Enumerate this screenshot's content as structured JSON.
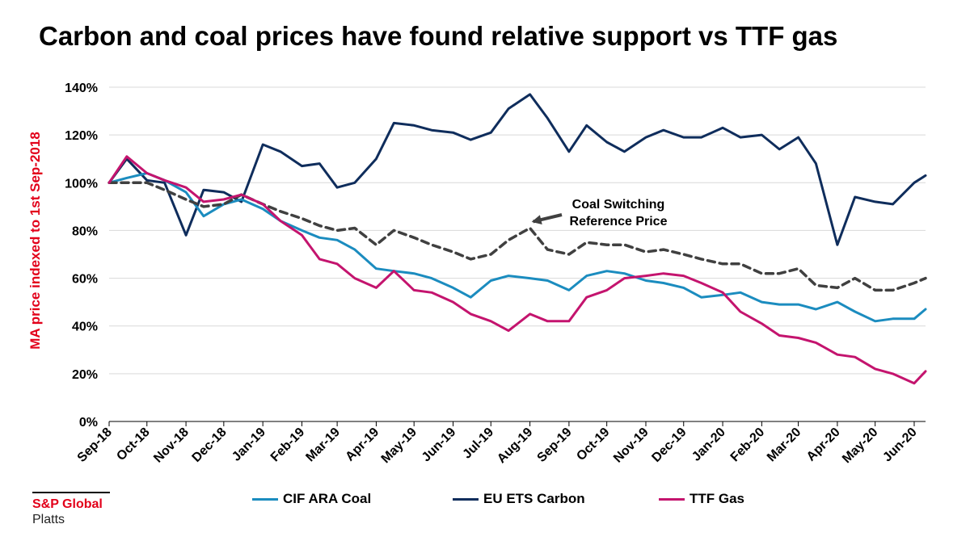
{
  "chart_data": {
    "type": "line",
    "title": "Carbon and coal prices have found relative support vs TTF gas",
    "ylabel": "MA price indexed to 1st Sep-2018",
    "xlabel": "",
    "ylim": [
      0,
      140
    ],
    "yticks": [
      "0%",
      "20%",
      "40%",
      "60%",
      "80%",
      "100%",
      "120%",
      "140%"
    ],
    "x_tick_labels": [
      "Sep-18",
      "Oct-18",
      "Nov-18",
      "Dec-18",
      "Jan-19",
      "Feb-19",
      "Mar-19",
      "Apr-19",
      "May-19",
      "Jun-19",
      "Jul-19",
      "Aug-19",
      "Sep-19",
      "Oct-19",
      "Nov-19",
      "Dec-19",
      "Jan-20",
      "Feb-20",
      "Mar-20",
      "Apr-20",
      "May-20",
      "Jun-20"
    ],
    "x": [
      "2018-09-01",
      "2018-09-15",
      "2018-10-01",
      "2018-10-15",
      "2018-11-01",
      "2018-11-15",
      "2018-12-01",
      "2018-12-15",
      "2019-01-01",
      "2019-01-15",
      "2019-02-01",
      "2019-02-15",
      "2019-03-01",
      "2019-03-15",
      "2019-04-01",
      "2019-04-15",
      "2019-05-01",
      "2019-05-15",
      "2019-06-01",
      "2019-06-15",
      "2019-07-01",
      "2019-07-15",
      "2019-08-01",
      "2019-08-15",
      "2019-09-01",
      "2019-09-15",
      "2019-10-01",
      "2019-10-15",
      "2019-11-01",
      "2019-11-15",
      "2019-12-01",
      "2019-12-15",
      "2020-01-01",
      "2020-01-15",
      "2020-02-01",
      "2020-02-15",
      "2020-03-01",
      "2020-03-15",
      "2020-04-01",
      "2020-04-15",
      "2020-05-01",
      "2020-05-15",
      "2020-06-01",
      "2020-06-10"
    ],
    "grid": "horizontal",
    "legend_position": "bottom",
    "series": [
      {
        "name": "CIF ARA Coal",
        "color": "#1b8cbf",
        "dash": "solid",
        "values": [
          100,
          102,
          104,
          101,
          96,
          86,
          91,
          93,
          89,
          84,
          80,
          77,
          76,
          72,
          64,
          63,
          62,
          60,
          56,
          52,
          59,
          61,
          60,
          59,
          55,
          61,
          63,
          62,
          59,
          58,
          56,
          52,
          53,
          54,
          50,
          49,
          49,
          47,
          50,
          46,
          42,
          43,
          43,
          47
        ]
      },
      {
        "name": "EU ETS Carbon",
        "color": "#0f2d5c",
        "dash": "solid",
        "values": [
          100,
          110,
          101,
          100,
          78,
          97,
          96,
          92,
          116,
          113,
          107,
          108,
          98,
          100,
          110,
          125,
          124,
          122,
          121,
          118,
          121,
          131,
          137,
          127,
          113,
          124,
          117,
          113,
          119,
          122,
          119,
          119,
          123,
          119,
          120,
          114,
          119,
          108,
          74,
          94,
          92,
          91,
          100,
          103
        ]
      },
      {
        "name": "Coal Switching Reference Price",
        "color": "#404040",
        "dash": "dashed",
        "values": [
          100,
          100,
          100,
          97,
          93,
          90,
          91,
          95,
          91,
          88,
          85,
          82,
          80,
          81,
          74,
          80,
          77,
          74,
          71,
          68,
          70,
          76,
          81,
          72,
          70,
          75,
          74,
          74,
          71,
          72,
          70,
          68,
          66,
          66,
          62,
          62,
          64,
          57,
          56,
          60,
          55,
          55,
          58,
          60
        ]
      },
      {
        "name": "TTF Gas",
        "color": "#c4146e",
        "dash": "solid",
        "values": [
          100,
          111,
          104,
          101,
          98,
          92,
          93,
          95,
          91,
          84,
          78,
          68,
          66,
          60,
          56,
          63,
          55,
          54,
          50,
          45,
          42,
          38,
          45,
          42,
          42,
          52,
          55,
          60,
          61,
          62,
          61,
          58,
          54,
          46,
          41,
          36,
          35,
          33,
          28,
          27,
          22,
          20,
          16,
          21
        ]
      }
    ],
    "annotations": [
      {
        "lines": [
          "Coal Switching",
          "Reference Price"
        ],
        "target_series": "Coal Switching Reference Price",
        "target_x": "2019-08-01"
      }
    ]
  },
  "legend": [
    {
      "label": "CIF ARA Coal",
      "color": "#1b8cbf"
    },
    {
      "label": "EU ETS Carbon",
      "color": "#0f2d5c"
    },
    {
      "label": "TTF Gas",
      "color": "#c4146e"
    }
  ],
  "brand": {
    "name": "S&P Global",
    "sub": "Platts"
  }
}
